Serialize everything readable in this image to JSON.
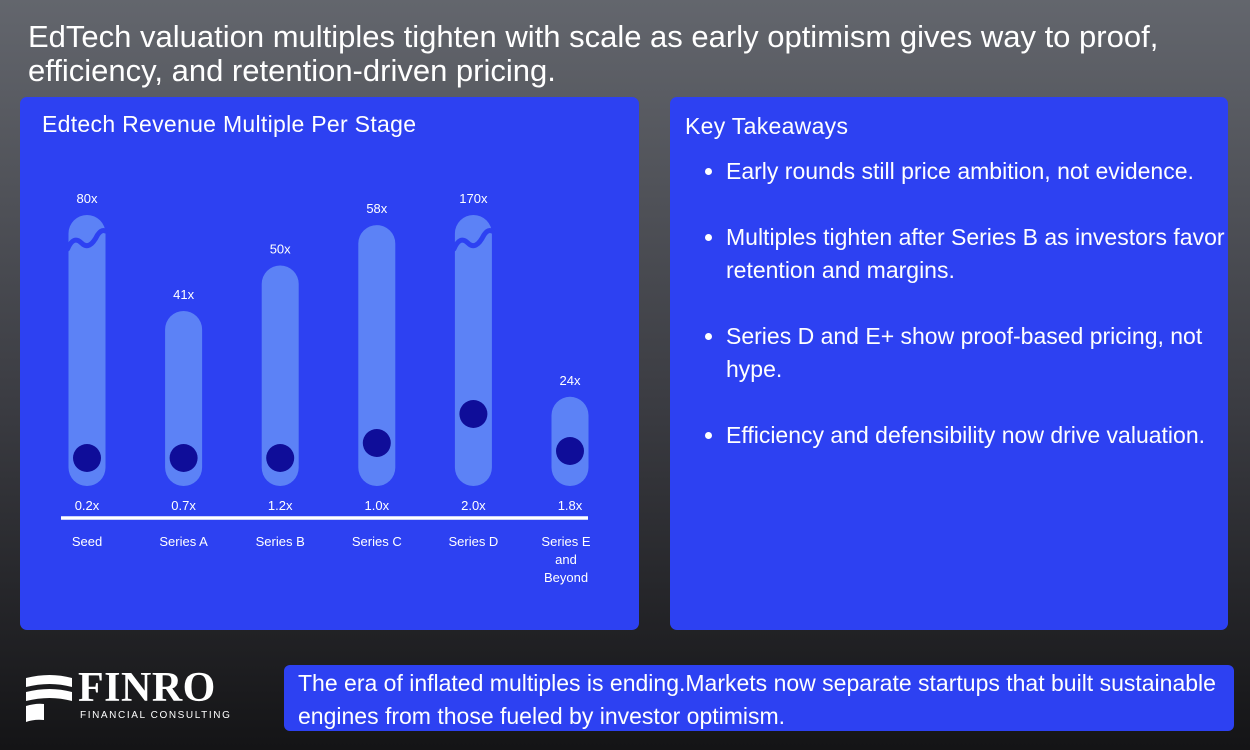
{
  "headline": "EdTech valuation multiples tighten with scale as early optimism gives way to proof, efficiency, and retention-driven pricing.",
  "chart_panel": {
    "title": "Edtech Revenue Multiple Per Stage"
  },
  "chart_data": {
    "type": "range-bar",
    "title": "Edtech Revenue Multiple Per Stage",
    "xlabel": "",
    "ylabel": "",
    "categories": [
      "Seed",
      "Series A",
      "Series B",
      "Series C",
      "Series D",
      "Series E and Beyond"
    ],
    "series": [
      {
        "values_high": [
          80,
          41,
          50,
          58,
          170,
          24
        ]
      },
      {
        "values_low": [
          0.2,
          0.7,
          1.2,
          1.0,
          2.0,
          1.8
        ]
      }
    ],
    "high_labels": [
      "80x",
      "41x",
      "50x",
      "58x",
      "170x",
      "24x"
    ],
    "low_labels": [
      "0.2x",
      "0.7x",
      "1.2x",
      "1.0x",
      "2.0x",
      "1.8x"
    ],
    "category_label_lines": [
      [
        "Seed"
      ],
      [
        "Series A"
      ],
      [
        "Series B"
      ],
      [
        "Series C"
      ],
      [
        "Series D"
      ],
      [
        "Series E",
        "and",
        "Beyond"
      ]
    ],
    "axis_break_on": [
      "Seed",
      "Series D"
    ],
    "ylim": [
      0,
      60
    ],
    "grid": false,
    "legend": "none",
    "colors": {
      "range_bar": "#5c82f6",
      "low_marker": "#0f0d99",
      "panel": "#2d41f2",
      "baseline": "#ffffff"
    }
  },
  "takeaways": {
    "title": "Key Takeaways",
    "items": [
      "Early rounds still price ambition, not evidence.",
      "Multiples tighten after Series B as investors favor retention and margins.",
      "Series D and E+ show proof-based pricing, not hype.",
      "Efficiency and defensibility now drive valuation."
    ]
  },
  "brand": {
    "name": "FINRO",
    "subtitle": "FINANCIAL CONSULTING"
  },
  "callout": "The era of inflated multiples is ending.Markets now separate startups that built sustainable engines from those fueled by investor optimism."
}
